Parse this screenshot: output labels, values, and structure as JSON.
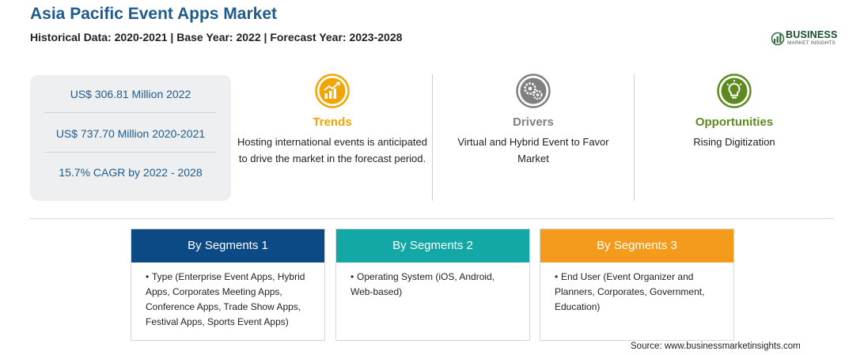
{
  "header": {
    "title": "Asia Pacific Event Apps Market",
    "subtitle": "Historical Data: 2020-2021 | Base Year: 2022 | Forecast Year: 2023-2028"
  },
  "logo": {
    "text": "BUSINESS",
    "sub": "MARKET INSIGHTS",
    "icon": "bar-chart-logo-icon"
  },
  "stats": [
    {
      "text": "US$ 306.81 Million 2022"
    },
    {
      "text": "US$ 737.70 Million 2020-2021"
    },
    {
      "text": "15.7% CAGR by 2022 - 2028"
    }
  ],
  "columns": [
    {
      "title": "Trends",
      "color": "#f0a500",
      "icon": "trend-chart-icon",
      "text": "Hosting international events is anticipated to drive the market in the forecast period."
    },
    {
      "title": "Drivers",
      "color": "#808080",
      "icon": "gears-icon",
      "text": "Virtual and Hybrid Event to Favor Market"
    },
    {
      "title": "Opportunities",
      "color": "#5d8a1e",
      "icon": "lightbulb-icon",
      "text": "Rising Digitization"
    }
  ],
  "segments": [
    {
      "title": "By Segments 1",
      "color": "#0c4a86",
      "text": "Type (Enterprise Event Apps, Hybrid Apps, Corporates Meeting Apps, Conference Apps, Trade Show Apps, Festival Apps, Sports Event Apps)"
    },
    {
      "title": "By Segments 2",
      "color": "#13a7a5",
      "text": "Operating System (iOS, Android, Web-based)"
    },
    {
      "title": "By Segments 3",
      "color": "#f49b1c",
      "text": "End User (Event Organizer and Planners, Corporates, Government, Education)"
    }
  ],
  "footer": {
    "source": "Source: www.businessmarketinsights.com"
  }
}
